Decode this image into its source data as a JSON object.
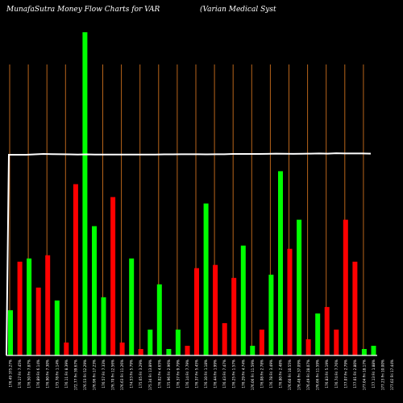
{
  "chart_data": {
    "type": "bar",
    "title": "MunafaSutra  Money Flow  Charts for VAR",
    "subtitle": "(Varian  Medical Syst",
    "background": "#000000",
    "colors": {
      "up": "#00ff00",
      "down": "#ff0000",
      "grid": "#b8651b",
      "line": "#ffffff",
      "baseline": "#ffffff"
    },
    "ylim": [
      0,
      100
    ],
    "grid": true,
    "categories": [
      "176.49 375.27%",
      "176.17 Fri 7.45%",
      "176.50 Fri 7.87%",
      "176.89 Fri 6.14%",
      "176.90 Fri 7.30%",
      "175.78 Fri 1.14%",
      "176.11 Fri 8.39%",
      "172.77 Fri 39.67%",
      "176.53 Fri 52.29%",
      "176.96 Fri 17.23%",
      "176.57 Fri 7.33%",
      "176.70 Fri 12.56%",
      "176.63 Fri 11.26%",
      "174.53 Fri 5.79%",
      "175.65 Fri 3.29%",
      "175.34 Fri 13.89%",
      "176.02 Fri 4.65%",
      "175.96 Fri 2.96%",
      "176.37 Fri 9.79%",
      "176.14 Fri 7.79%",
      "176.37 Fri 5.45%",
      "176.10 Fri 1.18%",
      "176.44 Fri 1.99%",
      "176.43 Fri 7.47%",
      "176.25 Fri 1.57%",
      "176.29 Fri 4.74%",
      "176.06 Fri 11.59%",
      "176.08 Fri 2.78%",
      "176.78 Fri 3.49%",
      "176.80 Fri 2.48%",
      "176.60 Fri 10.55%",
      "176.48 Fri 37.09%",
      "176.49 Fri 28.07%",
      "176.66 Fri 11.59%",
      "176.83 Fri 5.19%",
      "176.74 Fri 7.76%",
      "177.07 Fri 2.79%",
      "177.01 Fri 2.80%",
      "177.04 Fri 18.17%",
      "177.13 Fri 1.88%",
      "177.23 Fri 10.00%",
      "177.02 Fri 17.44%"
    ],
    "series": [
      {
        "values": [
          14,
          29,
          30,
          21,
          31,
          17,
          4,
          53,
          100,
          40,
          18,
          49,
          4,
          30,
          2,
          8,
          22,
          2,
          8,
          3,
          27,
          47,
          28,
          10,
          24,
          34,
          3,
          8,
          25,
          57,
          33,
          42,
          5,
          13,
          15,
          8,
          42,
          29,
          2,
          3,
          0,
          0
        ],
        "directions": [
          "up",
          "down",
          "up",
          "down",
          "down",
          "up",
          "down",
          "down",
          "up",
          "up",
          "up",
          "down",
          "down",
          "up",
          "down",
          "up",
          "up",
          "up",
          "up",
          "down",
          "down",
          "up",
          "down",
          "down",
          "down",
          "up",
          "up",
          "down",
          "up",
          "up",
          "down",
          "up",
          "down",
          "up",
          "down",
          "down",
          "down",
          "down",
          "up",
          "up",
          "up",
          "up"
        ]
      }
    ],
    "bars_shown": 40,
    "line": [
      57,
      57,
      57.3,
      57.6,
      57.5,
      57.4,
      57.3,
      57.1,
      57.3,
      57.2,
      57.2,
      57.2,
      57.1,
      57.2,
      57.2,
      57.2,
      57.2,
      57.3,
      57.3,
      57.4,
      57.4,
      57.4,
      57.3,
      57.4,
      57.4,
      57.6,
      57.6,
      57.6,
      57.6,
      57.7,
      57.9,
      57.8,
      57.7,
      57.8,
      57.9,
      58.0,
      57.9,
      58.2,
      58.0,
      58.0,
      58.0,
      57.9
    ]
  }
}
